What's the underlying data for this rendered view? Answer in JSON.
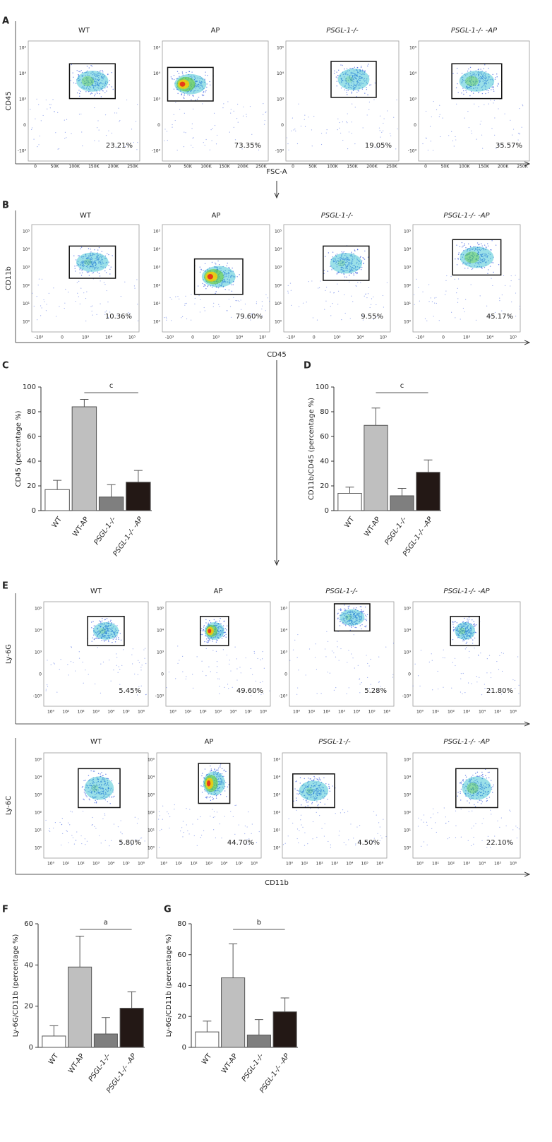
{
  "figure": {
    "panels": [
      {
        "letter": "A",
        "x_label": "FSC-A",
        "y_label": "CD45",
        "x_ticks": [
          "0",
          "50K",
          "100K",
          "150K",
          "200K",
          "250K"
        ],
        "y_ticks": [
          "10⁵",
          "10⁴",
          "10³",
          "0",
          "-10³"
        ],
        "plots": [
          {
            "title": "WT",
            "percent": "23.21%"
          },
          {
            "title": "AP",
            "percent": "73.35%"
          },
          {
            "title": "PSGL-1-/-",
            "percent": "19.05%"
          },
          {
            "title": "PSGL-1-/- -AP",
            "percent": "35.57%"
          }
        ]
      },
      {
        "letter": "B",
        "x_label": "CD45",
        "y_label": "CD11b",
        "x_ticks": [
          "-10³",
          "0",
          "10³",
          "10⁴",
          "10⁵"
        ],
        "y_ticks": [
          "10⁵",
          "10⁴",
          "10³",
          "10²",
          "10¹",
          "10⁰"
        ],
        "plots": [
          {
            "title": "WT",
            "percent": "10.36%"
          },
          {
            "title": "AP",
            "percent": "79.60%"
          },
          {
            "title": "PSGL-1-/-",
            "percent": "9.55%"
          },
          {
            "title": "PSGL-1-/- -AP",
            "percent": "45.17%"
          }
        ]
      },
      {
        "letter": "E",
        "y_label": "Ly-6G",
        "x_ticks": [
          "10⁰",
          "10¹",
          "10²",
          "10³",
          "10⁴",
          "10⁵",
          "10⁶"
        ],
        "y_ticks": [
          "10⁵",
          "10⁴",
          "10³",
          "0",
          "-10³"
        ],
        "plots": [
          {
            "title": "WT",
            "percent": "5.45%"
          },
          {
            "title": "AP",
            "percent": "49.60%"
          },
          {
            "title": "PSGL-1-/-",
            "percent": "5.28%"
          },
          {
            "title": "PSGL-1-/- -AP",
            "percent": "21.80%"
          }
        ]
      },
      {
        "x_label": "CD11b",
        "y_label": "Ly-6C",
        "x_ticks": [
          "10⁰",
          "10¹",
          "10²",
          "10³",
          "10⁴",
          "10⁵",
          "10⁶"
        ],
        "y_ticks": [
          "10⁵",
          "10⁴",
          "10³",
          "10²",
          "10¹",
          "10⁰"
        ],
        "plots": [
          {
            "title": "WT",
            "percent": "5.80%"
          },
          {
            "title": "AP",
            "percent": "44.70%"
          },
          {
            "title": "PSGL-1-/-",
            "percent": "4.50%"
          },
          {
            "title": "PSGL-1-/- -AP",
            "percent": "22.10%"
          }
        ]
      }
    ]
  },
  "chart_data": [
    {
      "type": "bar",
      "panel_label": "C",
      "y_label": "CD45 (percentage %)",
      "significance": "c",
      "categories": [
        "WT",
        "WT-AP",
        "PSGL-1-/-",
        "PSGL-1-/- -AP"
      ],
      "values": [
        17,
        84,
        11,
        23
      ],
      "errors": [
        7.5,
        6,
        10,
        9.5
      ],
      "colors": [
        "#ffffff",
        "#bfbfbf",
        "#7f7f7f",
        "#231815"
      ],
      "ylim": [
        0,
        100
      ],
      "yticks": [
        0,
        20,
        40,
        60,
        80,
        100
      ]
    },
    {
      "type": "bar",
      "panel_label": "D",
      "y_label": "CD11b/CD45 (percentage %)",
      "significance": "c",
      "categories": [
        "WT",
        "WT-AP",
        "PSGL-1-/-",
        "PSGL-1-/- -AP"
      ],
      "values": [
        14,
        69,
        12,
        31
      ],
      "errors": [
        5,
        14,
        6,
        10
      ],
      "colors": [
        "#ffffff",
        "#bfbfbf",
        "#7f7f7f",
        "#231815"
      ],
      "ylim": [
        0,
        100
      ],
      "yticks": [
        0,
        20,
        40,
        60,
        80,
        100
      ]
    },
    {
      "type": "bar",
      "panel_label": "F",
      "y_label": "Ly-6G/CD11b (percentage %)",
      "significance": "a",
      "categories": [
        "WT",
        "WT-AP",
        "PSGL-1-/-",
        "PSGL-1-/- -AP"
      ],
      "values": [
        5.5,
        39,
        6.5,
        19
      ],
      "errors": [
        5,
        15,
        8,
        8
      ],
      "colors": [
        "#ffffff",
        "#bfbfbf",
        "#7f7f7f",
        "#231815"
      ],
      "ylim": [
        0,
        60
      ],
      "yticks": [
        0,
        20,
        40,
        60
      ]
    },
    {
      "type": "bar",
      "panel_label": "G",
      "y_label": "Ly-6G/CD11b (percentage %)",
      "significance": "b",
      "categories": [
        "WT",
        "WT-AP",
        "PSGL-1-/-",
        "PSGL-1-/- -AP"
      ],
      "values": [
        10,
        45,
        8,
        23
      ],
      "errors": [
        7,
        22,
        10,
        9
      ],
      "colors": [
        "#ffffff",
        "#bfbfbf",
        "#7f7f7f",
        "#231815"
      ],
      "ylim": [
        0,
        80
      ],
      "yticks": [
        0,
        20,
        40,
        60,
        80
      ]
    }
  ]
}
